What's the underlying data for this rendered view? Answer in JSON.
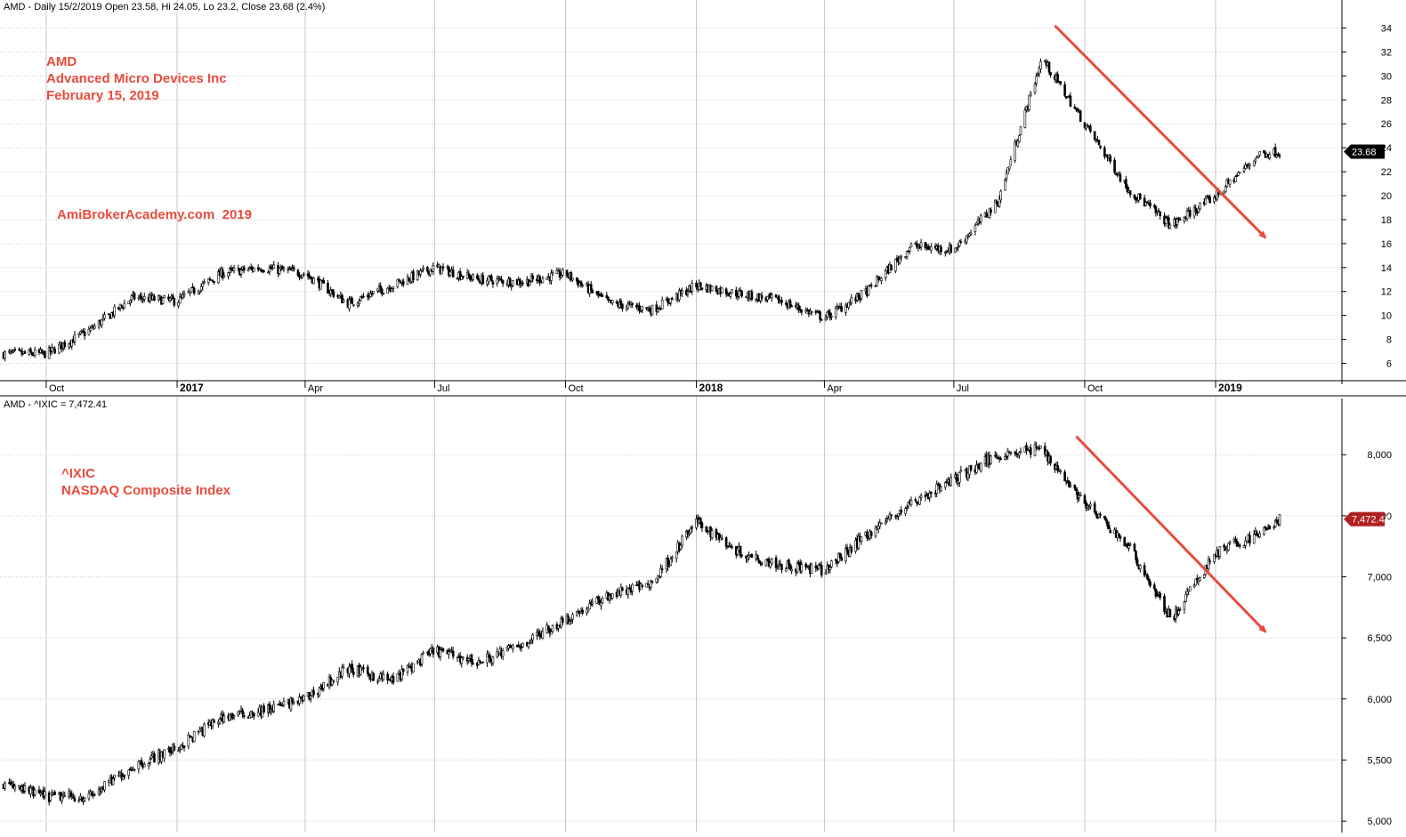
{
  "chart_data": [
    {
      "type": "ohlc",
      "header": "AMD - Daily 15/2/2019 Open 23.58, Hi 24.05, Lo 23.2, Close 23.68 (2.4%)",
      "annotations": [
        "AMD",
        "Advanced Micro Devices Inc",
        "February 15, 2019",
        "AmiBrokerAcademy.com  2019"
      ],
      "ylim": [
        5,
        35
      ],
      "y_ticks": [
        "6",
        "8",
        "10",
        "12",
        "14",
        "16",
        "18",
        "20",
        "22",
        "24",
        "26",
        "28",
        "30",
        "32",
        "34"
      ],
      "last_value_label": "23.68",
      "last_value": 23.68,
      "x": [
        "2016-09-01",
        "2016-10-01",
        "2016-11-01",
        "2016-12-01",
        "2017-01-01",
        "2017-02-01",
        "2017-03-01",
        "2017-04-01",
        "2017-05-01",
        "2017-06-01",
        "2017-07-01",
        "2017-08-01",
        "2017-09-01",
        "2017-10-01",
        "2017-11-01",
        "2017-12-01",
        "2018-01-01",
        "2018-02-01",
        "2018-03-01",
        "2018-04-01",
        "2018-05-01",
        "2018-06-01",
        "2018-07-01",
        "2018-08-01",
        "2018-09-01",
        "2018-10-01",
        "2018-11-01",
        "2018-12-01",
        "2019-01-01",
        "2019-02-01",
        "2019-02-15"
      ],
      "close": [
        6.8,
        6.8,
        8.8,
        11.5,
        11.2,
        13.5,
        14.0,
        13.5,
        11.0,
        12.5,
        14.0,
        13.0,
        12.8,
        13.5,
        11.0,
        10.5,
        12.5,
        11.8,
        11.2,
        9.8,
        12.0,
        15.8,
        15.5,
        19.5,
        31.5,
        26.0,
        20.5,
        17.5,
        20.0,
        23.5,
        23.68
      ],
      "trendline": {
        "from": [
          "2018-09-10",
          34.2
        ],
        "to": [
          "2019-02-05",
          16.5
        ]
      }
    },
    {
      "type": "ohlc",
      "header": "AMD - ^IXIC = 7,472.41",
      "annotations": [
        "^IXIC",
        "NASDAQ Composite Index"
      ],
      "ylim": [
        4950,
        8300
      ],
      "y_ticks": [
        "5,000",
        "5,500",
        "6,000",
        "6,500",
        "7,000",
        "7,500",
        "8,000"
      ],
      "last_value_label": "7,472.41",
      "last_value": 7472.41,
      "x": [
        "2016-09-01",
        "2016-10-01",
        "2016-11-01",
        "2016-12-01",
        "2017-01-01",
        "2017-02-01",
        "2017-03-01",
        "2017-04-01",
        "2017-05-01",
        "2017-06-01",
        "2017-07-01",
        "2017-08-01",
        "2017-09-01",
        "2017-10-01",
        "2017-11-01",
        "2017-12-01",
        "2018-01-01",
        "2018-02-01",
        "2018-03-01",
        "2018-04-01",
        "2018-05-01",
        "2018-06-01",
        "2018-07-01",
        "2018-08-01",
        "2018-09-01",
        "2018-10-01",
        "2018-11-01",
        "2018-12-01",
        "2019-01-01",
        "2019-02-01",
        "2019-02-15"
      ],
      "close": [
        5300,
        5200,
        5200,
        5450,
        5600,
        5850,
        5900,
        6000,
        6250,
        6150,
        6400,
        6300,
        6450,
        6650,
        6850,
        6950,
        7450,
        7200,
        7100,
        7050,
        7350,
        7600,
        7800,
        8000,
        8050,
        7600,
        7250,
        6650,
        7200,
        7350,
        7472.41
      ],
      "trendline": {
        "from": [
          "2018-09-25",
          8150
        ],
        "to": [
          "2019-02-05",
          6550
        ]
      }
    }
  ],
  "x_axis": {
    "ticks": [
      {
        "label": "Oct",
        "date": "2016-10-01",
        "bold": false
      },
      {
        "label": "2017",
        "date": "2017-01-01",
        "bold": true
      },
      {
        "label": "Apr",
        "date": "2017-04-01",
        "bold": false
      },
      {
        "label": "Jul",
        "date": "2017-07-01",
        "bold": false
      },
      {
        "label": "Oct",
        "date": "2017-10-01",
        "bold": false
      },
      {
        "label": "2018",
        "date": "2018-01-01",
        "bold": true
      },
      {
        "label": "Apr",
        "date": "2018-04-01",
        "bold": false
      },
      {
        "label": "Jul",
        "date": "2018-07-01",
        "bold": false
      },
      {
        "label": "Oct",
        "date": "2018-10-01",
        "bold": false
      },
      {
        "label": "2019",
        "date": "2019-01-01",
        "bold": true
      }
    ]
  },
  "colors": {
    "bars": "#000000",
    "annotation": "#e84c3d",
    "trend_arrow": "#e84c3d",
    "grid": "#c8c8c8",
    "badge_bg": "#000000",
    "badge_bg_2": "#b02020"
  }
}
